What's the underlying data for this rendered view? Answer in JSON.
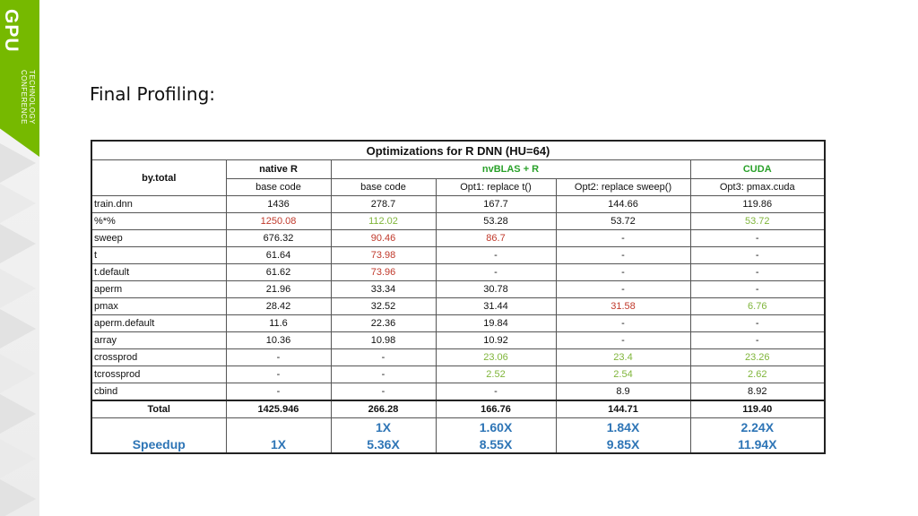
{
  "brand": {
    "line1": "GPU",
    "line2": "TECHNOLOGY",
    "line3": "CONFERENCE",
    "color": "#76b900"
  },
  "slide_title": "Final Profiling:",
  "table": {
    "title": "Optimizations for R DNN (HU=64)",
    "row_header": "by.total",
    "groups": [
      "native R",
      "nvBLAS + R",
      "CUDA"
    ],
    "subheaders": [
      "base code",
      "base code",
      "Opt1: replace t()",
      "Opt2: replace sweep()",
      "Opt3:   pmax.cuda"
    ],
    "rows": [
      {
        "label": "train.dnn",
        "cells": [
          "1436",
          "278.7",
          "167.7",
          "144.66",
          "119.86"
        ]
      },
      {
        "label": "%*%",
        "cells": [
          "1250.08",
          "112.02",
          "53.28",
          "53.72",
          "53.72"
        ]
      },
      {
        "label": "sweep",
        "cells": [
          "676.32",
          "90.46",
          "86.7",
          "-",
          "-"
        ]
      },
      {
        "label": "t",
        "cells": [
          "61.64",
          "73.98",
          "-",
          "-",
          "-"
        ]
      },
      {
        "label": "t.default",
        "cells": [
          "61.62",
          "73.96",
          "-",
          "-",
          "-"
        ]
      },
      {
        "label": "aperm",
        "cells": [
          "21.96",
          "33.34",
          "30.78",
          "-",
          "-"
        ]
      },
      {
        "label": "pmax",
        "cells": [
          "28.42",
          "32.52",
          "31.44",
          "31.58",
          "6.76"
        ]
      },
      {
        "label": "aperm.default",
        "cells": [
          "11.6",
          "22.36",
          "19.84",
          "-",
          "-"
        ]
      },
      {
        "label": "array",
        "cells": [
          "10.36",
          "10.98",
          "10.92",
          "-",
          "-"
        ]
      },
      {
        "label": "crossprod",
        "cells": [
          "-",
          "-",
          "23.06",
          "23.4",
          "23.26"
        ]
      },
      {
        "label": "tcrossprod",
        "cells": [
          "-",
          "-",
          "2.52",
          "2.54",
          "2.62"
        ]
      },
      {
        "label": "cbind",
        "cells": [
          "-",
          "-",
          "-",
          "8.9",
          "8.92"
        ]
      }
    ],
    "total": {
      "label": "Total",
      "cells": [
        "1425.946",
        "266.28",
        "166.76",
        "144.71",
        "119.40"
      ]
    },
    "speedup_top": [
      "",
      "1X",
      "1.60X",
      "1.84X",
      "2.24X"
    ],
    "speedup": {
      "label": "Speedup",
      "cells": [
        "1X",
        "5.36X",
        "8.55X",
        "9.85X",
        "11.94X"
      ]
    }
  },
  "colors": {
    "red": "#c0392b",
    "green": "#7fb53a",
    "group_green": "#2aa12a",
    "speedup_blue": "#2e75b6"
  }
}
